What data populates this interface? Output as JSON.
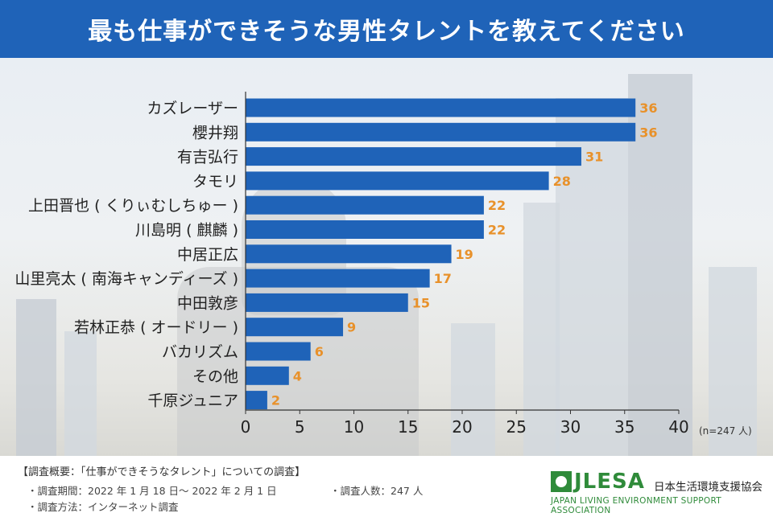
{
  "title": "最も仕事ができそうな男性タレントを教えてください",
  "chart_data": {
    "type": "bar",
    "orientation": "horizontal",
    "categories": [
      "カズレーザー",
      "櫻井翔",
      "有吉弘行",
      "タモリ",
      "上田晋也 ( くりぃむしちゅー )",
      "川島明 ( 麒麟 )",
      "中居正広",
      "山里亮太 ( 南海キャンディーズ )",
      "中田敦彦",
      "若林正恭 ( オードリー )",
      "バカリズム",
      "その他",
      "千原ジュニア"
    ],
    "values": [
      36,
      36,
      31,
      28,
      22,
      22,
      19,
      17,
      15,
      9,
      6,
      4,
      2
    ],
    "xlim": [
      0,
      40
    ],
    "xticks": [
      0,
      5,
      10,
      15,
      20,
      25,
      30,
      35,
      40
    ],
    "sample_note": "(n=247 人)",
    "bar_color": "#1f63b8",
    "label_color": "#e8912a",
    "xlabel": "",
    "ylabel": ""
  },
  "footer": {
    "survey_title": "【調査概要：「仕事ができそうなタレント」についての調査】",
    "period": "・調査期間：2022 年 1 月 18 日～ 2022 年 2 月 1 日",
    "respondents": "・調査人数：247 人",
    "method": "・調査方法：インターネット調査"
  },
  "logo": {
    "mark_text": "JLESA",
    "org_name": "日本生活環境支援協会",
    "org_english": "JAPAN LIVING ENVIRONMENT SUPPORT ASSOCIATION"
  },
  "colors": {
    "banner": "#1f63b8",
    "logo_green": "#2f8b3a"
  }
}
